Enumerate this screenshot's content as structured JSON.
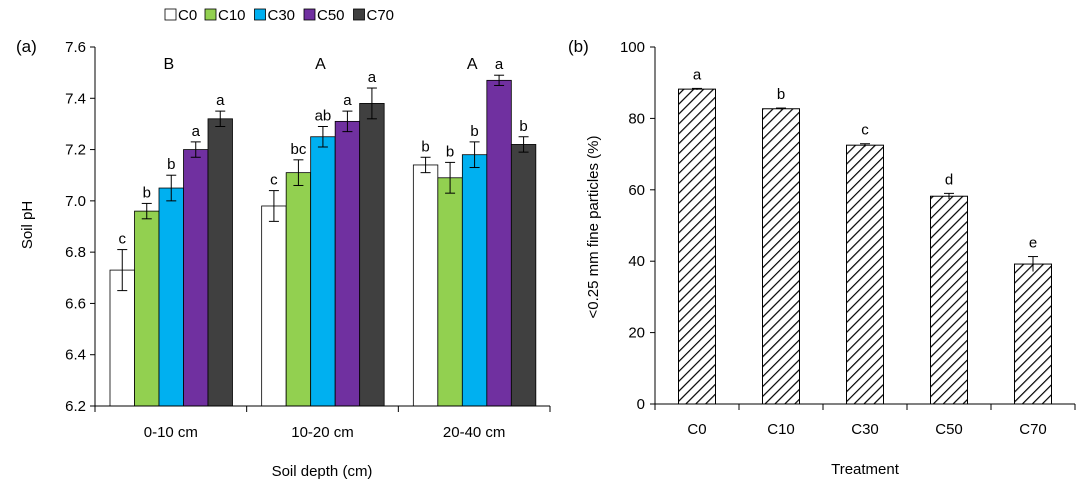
{
  "chart_data": [
    {
      "type": "bar",
      "panel_label": "(a)",
      "title": "",
      "xlabel": "Soil depth (cm)",
      "ylabel": "Soil pH",
      "ylim": [
        6.2,
        7.6
      ],
      "yticks": [
        "6.2",
        "6.4",
        "6.6",
        "6.8",
        "7.0",
        "7.2",
        "7.4",
        "7.6"
      ],
      "categories": [
        "0-10 cm",
        "10-20 cm",
        "20-40 cm"
      ],
      "group_letters": [
        "B",
        "A",
        "A"
      ],
      "legend_position": "top",
      "grid": false,
      "series": [
        {
          "name": "C0",
          "color": "#ffffff",
          "values": [
            6.73,
            6.98,
            7.14
          ],
          "errors": [
            0.08,
            0.06,
            0.03
          ],
          "letters": [
            "c",
            "c",
            "b"
          ]
        },
        {
          "name": "C10",
          "color": "#92d050",
          "values": [
            6.96,
            7.11,
            7.09
          ],
          "errors": [
            0.03,
            0.05,
            0.06
          ],
          "letters": [
            "b",
            "bc",
            "b"
          ]
        },
        {
          "name": "C30",
          "color": "#00b0f0",
          "values": [
            7.05,
            7.25,
            7.18
          ],
          "errors": [
            0.05,
            0.04,
            0.05
          ],
          "letters": [
            "b",
            "ab",
            "b"
          ]
        },
        {
          "name": "C50",
          "color": "#7030a0",
          "values": [
            7.2,
            7.31,
            7.47
          ],
          "errors": [
            0.03,
            0.04,
            0.02
          ],
          "letters": [
            "a",
            "a",
            "a"
          ]
        },
        {
          "name": "C70",
          "color": "#404040",
          "values": [
            7.32,
            7.38,
            7.22
          ],
          "errors": [
            0.03,
            0.06,
            0.03
          ],
          "letters": [
            "a",
            "a",
            "b"
          ]
        }
      ]
    },
    {
      "type": "bar",
      "panel_label": "(b)",
      "title": "",
      "xlabel": "Treatment",
      "ylabel": "<0.25 mm fine particles (%)",
      "ylim": [
        0,
        100
      ],
      "yticks": [
        "0",
        "20",
        "40",
        "60",
        "80",
        "100"
      ],
      "categories": [
        "C0",
        "C10",
        "C30",
        "C50",
        "C70"
      ],
      "grid": false,
      "fill_pattern": "diagonal-hatch",
      "values": [
        88.2,
        82.7,
        72.5,
        58.2,
        39.2
      ],
      "errors": [
        0.2,
        0.2,
        0.4,
        0.8,
        2.1
      ],
      "letters": [
        "a",
        "b",
        "c",
        "d",
        "e"
      ]
    }
  ]
}
